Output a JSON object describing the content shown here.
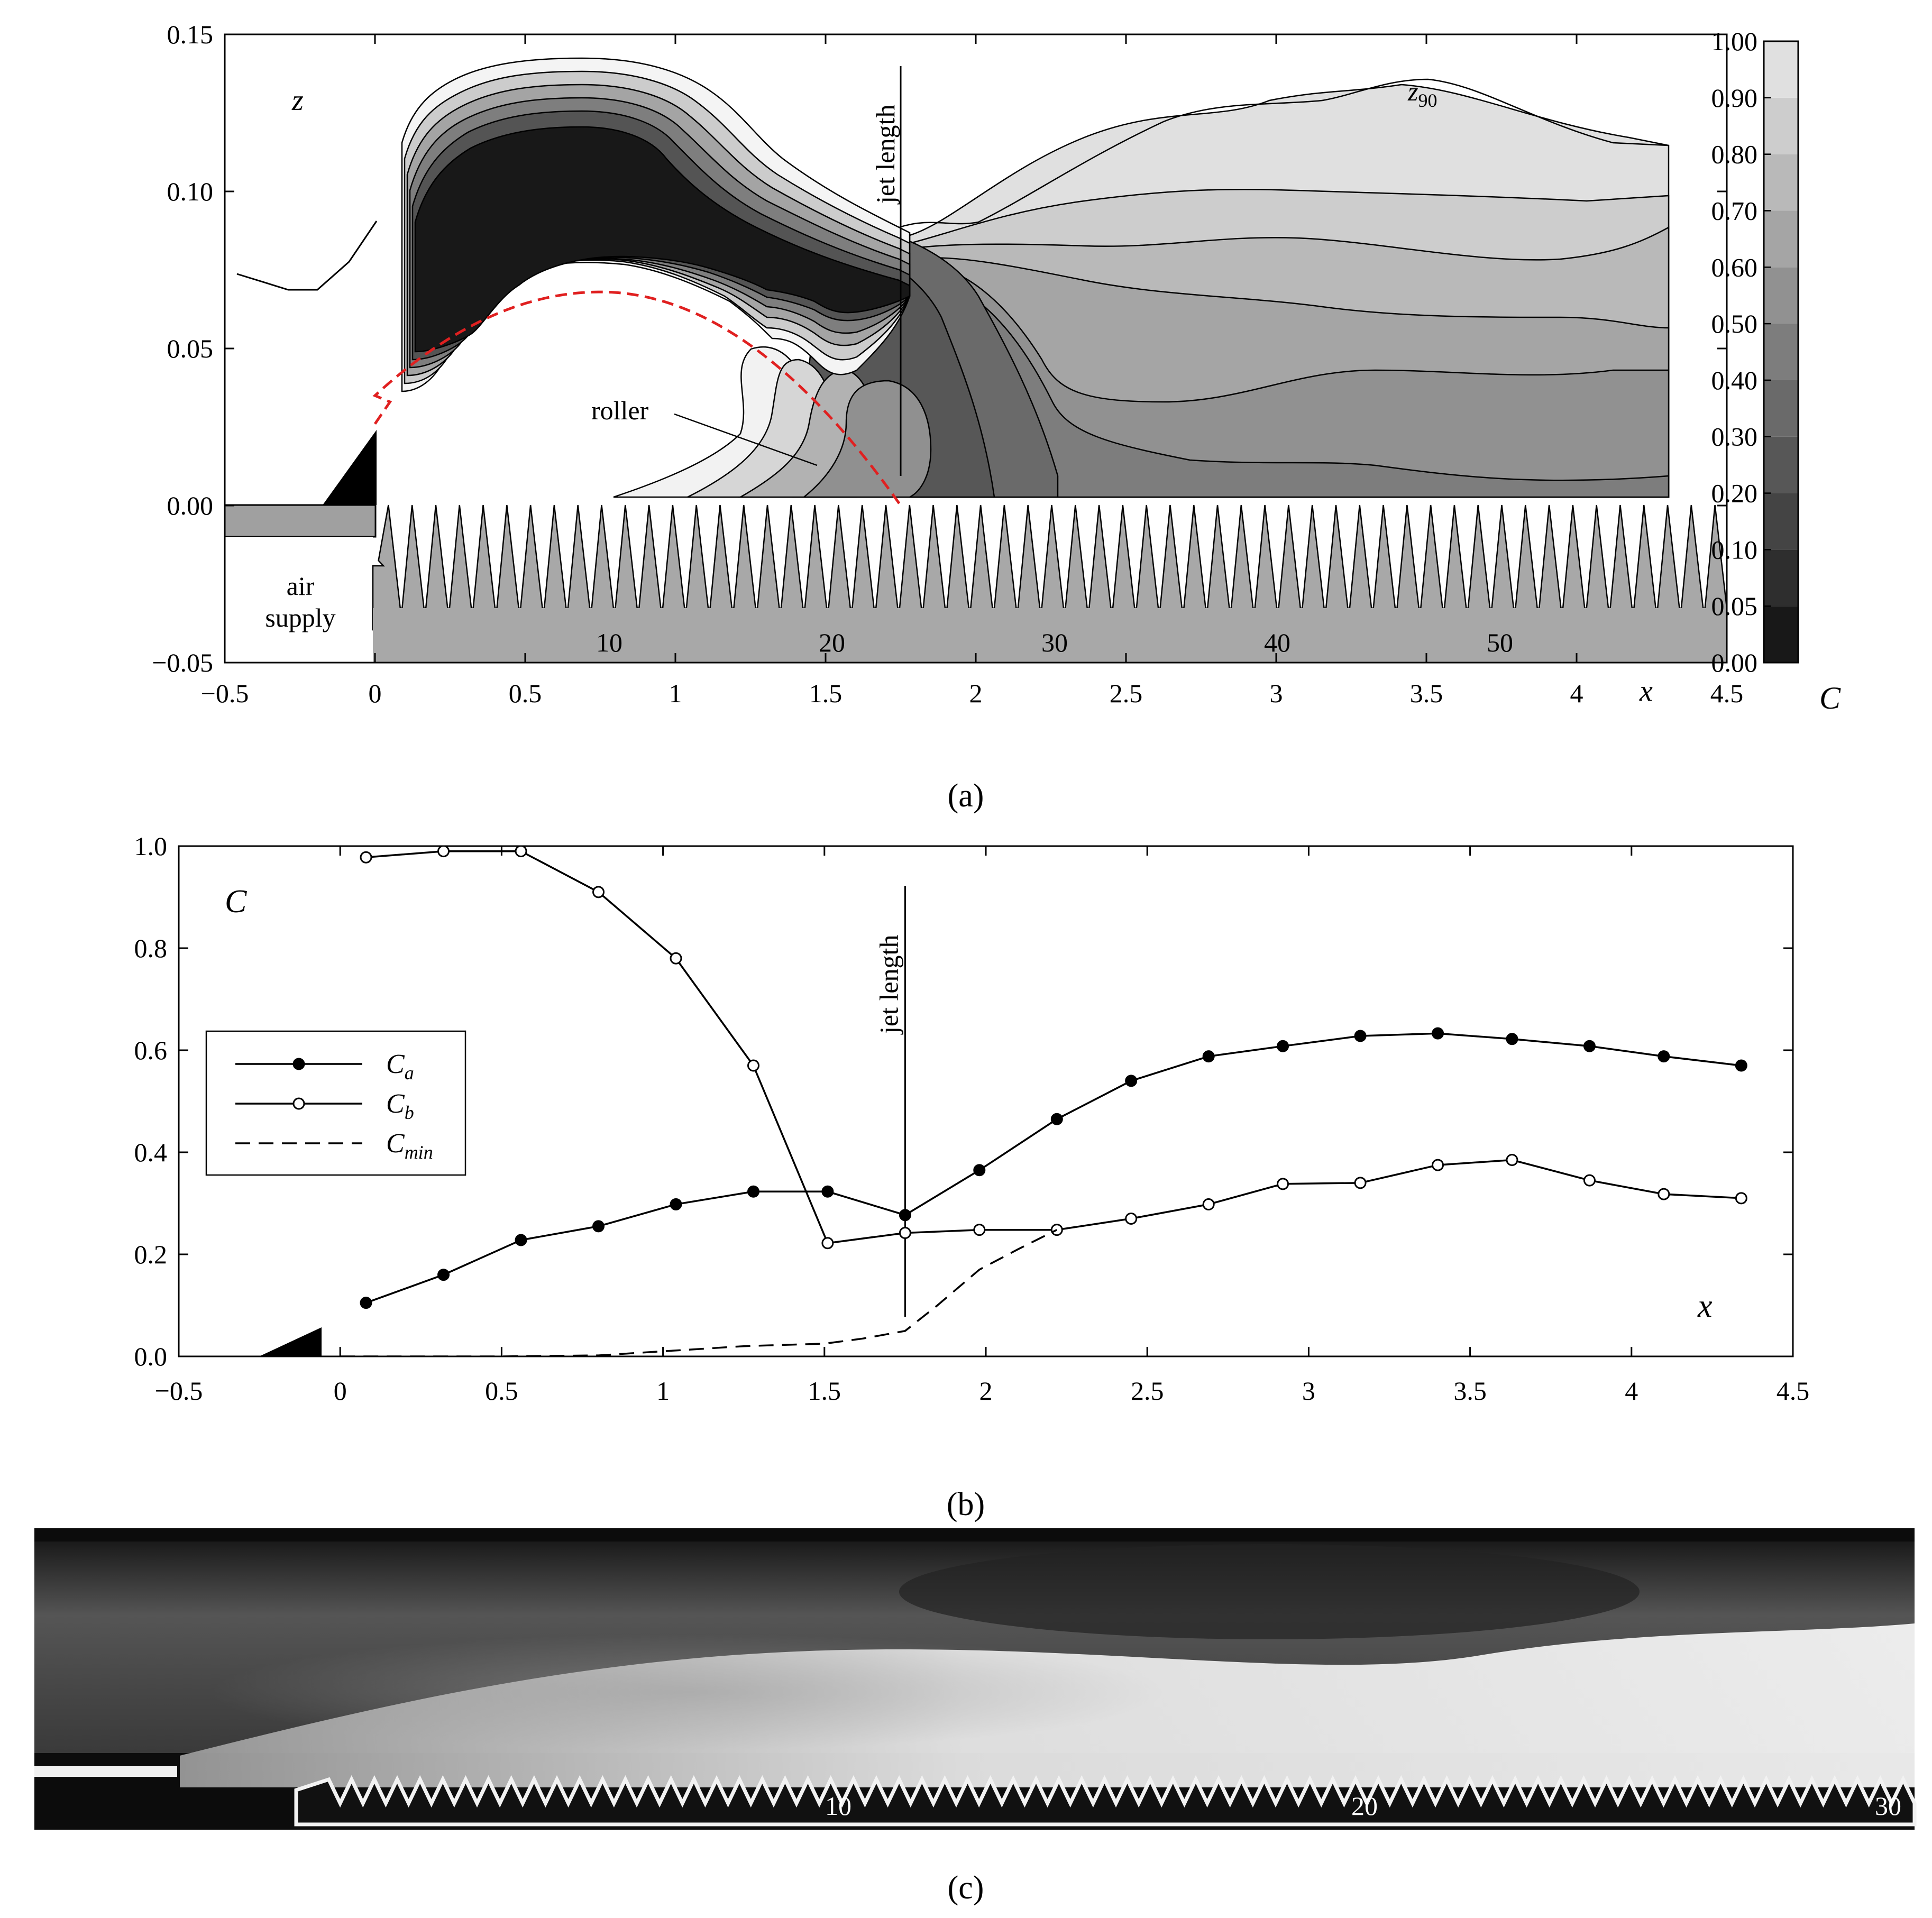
{
  "colors": {
    "roller_line": "#e02020",
    "fill_dark": "#181818",
    "fill_light": "#ececec"
  },
  "chart_data": [
    {
      "panel": "a",
      "type": "heatmap",
      "caption": "(a)",
      "xlabel": "x",
      "ylabel": "z",
      "xlim": [
        -0.5,
        4.5
      ],
      "ylim": [
        -0.05,
        0.15
      ],
      "x_ticks": [
        "−0.5",
        "0",
        "0.5",
        "1",
        "1.5",
        "2",
        "2.5",
        "3",
        "3.5",
        "4",
        "4.5"
      ],
      "y_ticks": [
        "−0.05",
        "0.00",
        "0.05",
        "0.10",
        "0.15"
      ],
      "colorbar": {
        "label": "C",
        "levels": [
          "0.00",
          "0.05",
          "0.10",
          "0.20",
          "0.30",
          "0.40",
          "0.50",
          "0.60",
          "0.70",
          "0.80",
          "0.90",
          "1.00"
        ],
        "colors": [
          "#181818",
          "#2e2e2e",
          "#444444",
          "#575757",
          "#6a6a6a",
          "#7d7d7d",
          "#919191",
          "#a5a5a5",
          "#b9b9b9",
          "#cdcdcd",
          "#e0e0e0",
          "#f8f8f8"
        ]
      },
      "annotations": {
        "jet_length": "jet length",
        "roller": "roller",
        "z90": "z",
        "z90_sub": "90",
        "air_supply_line1": "air",
        "air_supply_line2": "supply"
      },
      "jet_length_x": 1.75,
      "roller_parabola": {
        "x0": 0.0,
        "z0": 0.035,
        "x_peak": 0.75,
        "z_peak": 0.068,
        "x_end": 1.75,
        "z_end": 0.0
      },
      "step_numbers": [
        "10",
        "20",
        "30",
        "40",
        "50"
      ]
    },
    {
      "panel": "b",
      "type": "line",
      "caption": "(b)",
      "xlabel": "x",
      "ylabel": "C",
      "xlim": [
        -0.5,
        4.5
      ],
      "ylim": [
        0.0,
        1.0
      ],
      "x_ticks": [
        "−0.5",
        "0",
        "0.5",
        "1",
        "1.5",
        "2",
        "2.5",
        "3",
        "3.5",
        "4",
        "4.5"
      ],
      "y_ticks": [
        "0.0",
        "0.2",
        "0.4",
        "0.6",
        "0.8",
        "1.0"
      ],
      "jet_length_label": "jet length",
      "jet_length_x": 1.75,
      "legend_position": "middle-left",
      "series": [
        {
          "name": "C",
          "name_sub": "a",
          "marker": "filled",
          "x": [
            0.08,
            0.32,
            0.56,
            0.8,
            1.04,
            1.28,
            1.51,
            1.75,
            1.98,
            2.22,
            2.45,
            2.69,
            2.92,
            3.16,
            3.4,
            3.63,
            3.87,
            4.1,
            4.34
          ],
          "y": [
            0.105,
            0.16,
            0.228,
            0.255,
            0.298,
            0.323,
            0.323,
            0.277,
            0.365,
            0.465,
            0.54,
            0.588,
            0.608,
            0.628,
            0.633,
            0.622,
            0.608,
            0.588,
            0.57
          ]
        },
        {
          "name": "C",
          "name_sub": "b",
          "marker": "open",
          "x": [
            0.08,
            0.32,
            0.56,
            0.8,
            1.04,
            1.28,
            1.51,
            1.75,
            1.98,
            2.22,
            2.45,
            2.69,
            2.92,
            3.16,
            3.4,
            3.63,
            3.87,
            4.1,
            4.34
          ],
          "y": [
            0.978,
            0.99,
            0.99,
            0.91,
            0.78,
            0.57,
            0.222,
            0.242,
            0.248,
            0.248,
            0.27,
            0.298,
            0.338,
            0.34,
            0.375,
            0.385,
            0.345,
            0.318,
            0.31
          ]
        },
        {
          "name": "C",
          "name_sub": "min",
          "marker": "none",
          "dash": true,
          "x": [
            0.0,
            0.5,
            0.8,
            1.0,
            1.25,
            1.5,
            1.62,
            1.75,
            1.85,
            1.98,
            2.1,
            2.22
          ],
          "y": [
            0.0,
            0.0,
            0.002,
            0.01,
            0.02,
            0.025,
            0.035,
            0.05,
            0.1,
            0.17,
            0.21,
            0.248
          ]
        }
      ]
    },
    {
      "panel": "c",
      "type": "photo",
      "caption": "(c)",
      "step_numbers": [
        "10",
        "20",
        "30"
      ]
    }
  ]
}
